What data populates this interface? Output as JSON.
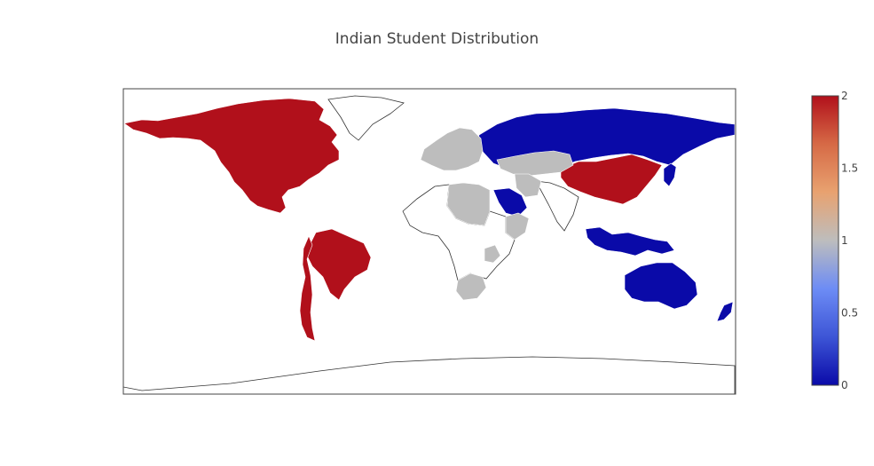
{
  "title": "Indian Student Distribution",
  "colors": {
    "high": "#b1101b",
    "mid": "#bdbdbd",
    "low": "#0a0aa8",
    "no_data": "#ffffff",
    "land_stroke": "#333333",
    "frame_stroke": "#444444",
    "colorscale": [
      "#0a0aa8",
      "#3d55d6",
      "#6d8cf5",
      "#bdbdbd",
      "#e8a270",
      "#d66a46",
      "#b1101b"
    ]
  },
  "colorbar": {
    "min": 0,
    "max": 2,
    "ticks": [
      "0",
      "0.5",
      "1",
      "1.5",
      "2"
    ],
    "tick_values": [
      0,
      0.5,
      1,
      1.5,
      2
    ]
  },
  "map_data": {
    "projection": "equirectangular",
    "regions": [
      {
        "name": "North America",
        "value": 2
      },
      {
        "name": "Brazil",
        "value": 2
      },
      {
        "name": "Western South America",
        "value": 2
      },
      {
        "name": "China",
        "value": 2
      },
      {
        "name": "Russia",
        "value": 0
      },
      {
        "name": "Saudi Arabia",
        "value": 0
      },
      {
        "name": "Southeast Asia",
        "value": 0
      },
      {
        "name": "Australia",
        "value": 0
      },
      {
        "name": "New Zealand",
        "value": 0
      },
      {
        "name": "Japan",
        "value": 0
      },
      {
        "name": "Europe",
        "value": 1
      },
      {
        "name": "Central Asia",
        "value": 1
      },
      {
        "name": "North Africa",
        "value": 1
      },
      {
        "name": "Iran",
        "value": 1
      },
      {
        "name": "East Africa",
        "value": 1
      },
      {
        "name": "South Africa",
        "value": 1
      },
      {
        "name": "Madagascar",
        "value": 1
      }
    ]
  }
}
